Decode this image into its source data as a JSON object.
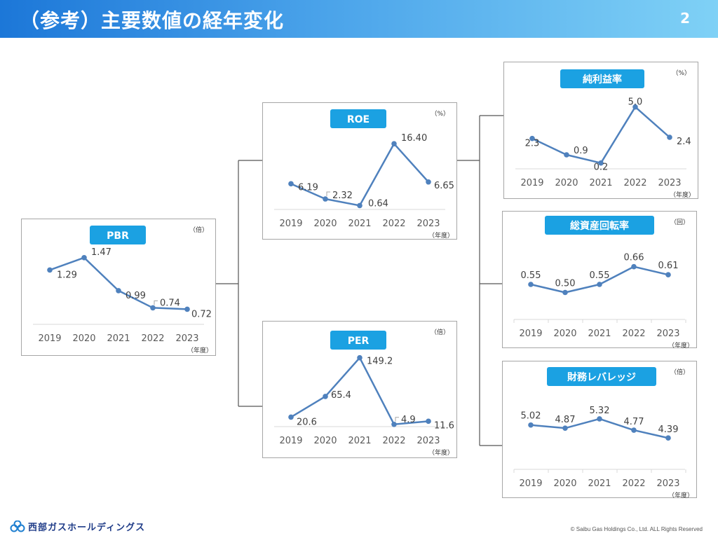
{
  "header": {
    "title": "（参考）主要数値の経年変化",
    "page_number": "2"
  },
  "footer": {
    "logo_text": "西部ガスホールディングス",
    "copyright": "© Saibu Gas Holdings Co., Ltd. ALL Rights Reserved"
  },
  "chart_data": [
    {
      "type": "line",
      "title": "PBR",
      "unit": "（倍）",
      "axis_unit": "（年度）",
      "categories": [
        "2019",
        "2020",
        "2021",
        "2022",
        "2023"
      ],
      "values": [
        1.29,
        1.47,
        0.99,
        0.74,
        0.72
      ],
      "labels": [
        "1.29",
        "1.47",
        "0.99",
        "0.74",
        "0.72"
      ],
      "ylim": [
        0.5,
        1.6
      ]
    },
    {
      "type": "line",
      "title": "ROE",
      "unit": "（%）",
      "axis_unit": "（年度）",
      "categories": [
        "2019",
        "2020",
        "2021",
        "2022",
        "2023"
      ],
      "values": [
        6.19,
        2.32,
        0.64,
        16.4,
        6.65
      ],
      "labels": [
        "6.19",
        "2.32",
        "0.64",
        "16.40",
        "6.65"
      ],
      "ylim": [
        0,
        20
      ]
    },
    {
      "type": "line",
      "title": "PER",
      "unit": "（倍）",
      "axis_unit": "（年度）",
      "categories": [
        "2019",
        "2020",
        "2021",
        "2022",
        "2023"
      ],
      "values": [
        20.6,
        65.4,
        149.2,
        4.9,
        11.6
      ],
      "labels": [
        "20.6",
        "65.4",
        "149.2",
        "4.9",
        "11.6"
      ],
      "ylim": [
        0,
        170
      ]
    },
    {
      "type": "line",
      "title": "純利益率",
      "unit": "（%）",
      "axis_unit": "（年度）",
      "categories": [
        "2019",
        "2020",
        "2021",
        "2022",
        "2023"
      ],
      "values": [
        2.3,
        0.9,
        0.2,
        5.0,
        2.4
      ],
      "labels": [
        "2.3",
        "0.9",
        "0.2",
        "5.0",
        "2.4"
      ],
      "ylim": [
        -0.3,
        5.7
      ]
    },
    {
      "type": "line",
      "title": "総資産回転率",
      "unit": "（回）",
      "axis_unit": "（年度）",
      "categories": [
        "2019",
        "2020",
        "2021",
        "2022",
        "2023"
      ],
      "values": [
        0.55,
        0.5,
        0.55,
        0.66,
        0.61
      ],
      "labels": [
        "0.55",
        "0.50",
        "0.55",
        "0.66",
        "0.61"
      ],
      "ylim": [
        0.35,
        0.75
      ]
    },
    {
      "type": "line",
      "title": "財務レバレッジ",
      "unit": "（倍）",
      "axis_unit": "（年度）",
      "categories": [
        "2019",
        "2020",
        "2021",
        "2022",
        "2023"
      ],
      "values": [
        5.02,
        4.87,
        5.32,
        4.77,
        4.39
      ],
      "labels": [
        "5.02",
        "4.87",
        "5.32",
        "4.77",
        "4.39"
      ],
      "ylim": [
        3.0,
        6.0
      ]
    }
  ]
}
